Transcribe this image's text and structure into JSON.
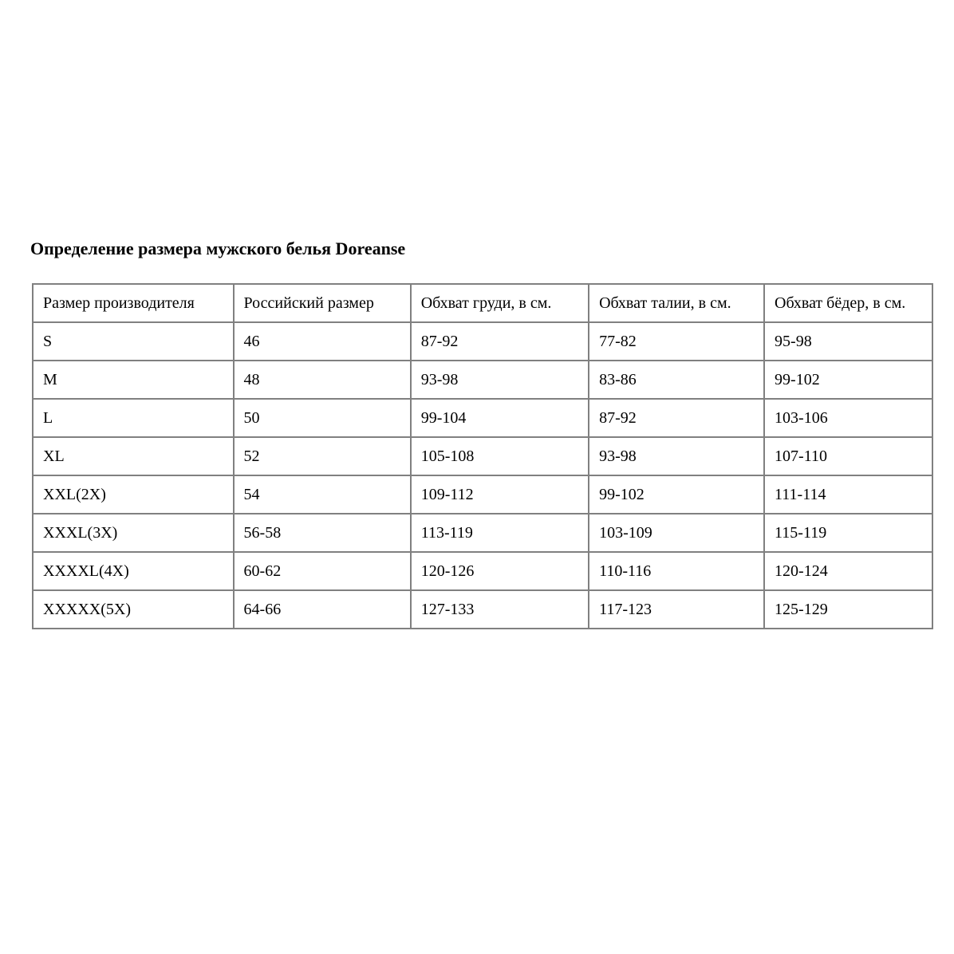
{
  "page": {
    "title": "Определение размера мужского белья Doreanse"
  },
  "table": {
    "border_color": "#808080",
    "headers": [
      "Размер производителя",
      "Российский размер",
      "Обхват груди, в см.",
      "Обхват талии, в см.",
      "Обхват бёдер, в см."
    ],
    "rows": [
      [
        "S",
        "46",
        "87-92",
        "77-82",
        "95-98"
      ],
      [
        "M",
        "48",
        "93-98",
        "83-86",
        "99-102"
      ],
      [
        "L",
        "50",
        "99-104",
        "87-92",
        "103-106"
      ],
      [
        "XL",
        "52",
        "105-108",
        "93-98",
        "107-110"
      ],
      [
        "XXL(2X)",
        "54",
        "109-112",
        "99-102",
        "111-114"
      ],
      [
        "XXXL(3X)",
        "56-58",
        "113-119",
        "103-109",
        "115-119"
      ],
      [
        "XXXXL(4X)",
        "60-62",
        "120-126",
        "110-116",
        "120-124"
      ],
      [
        "XXXXX(5X)",
        "64-66",
        "127-133",
        "117-123",
        "125-129"
      ]
    ]
  }
}
